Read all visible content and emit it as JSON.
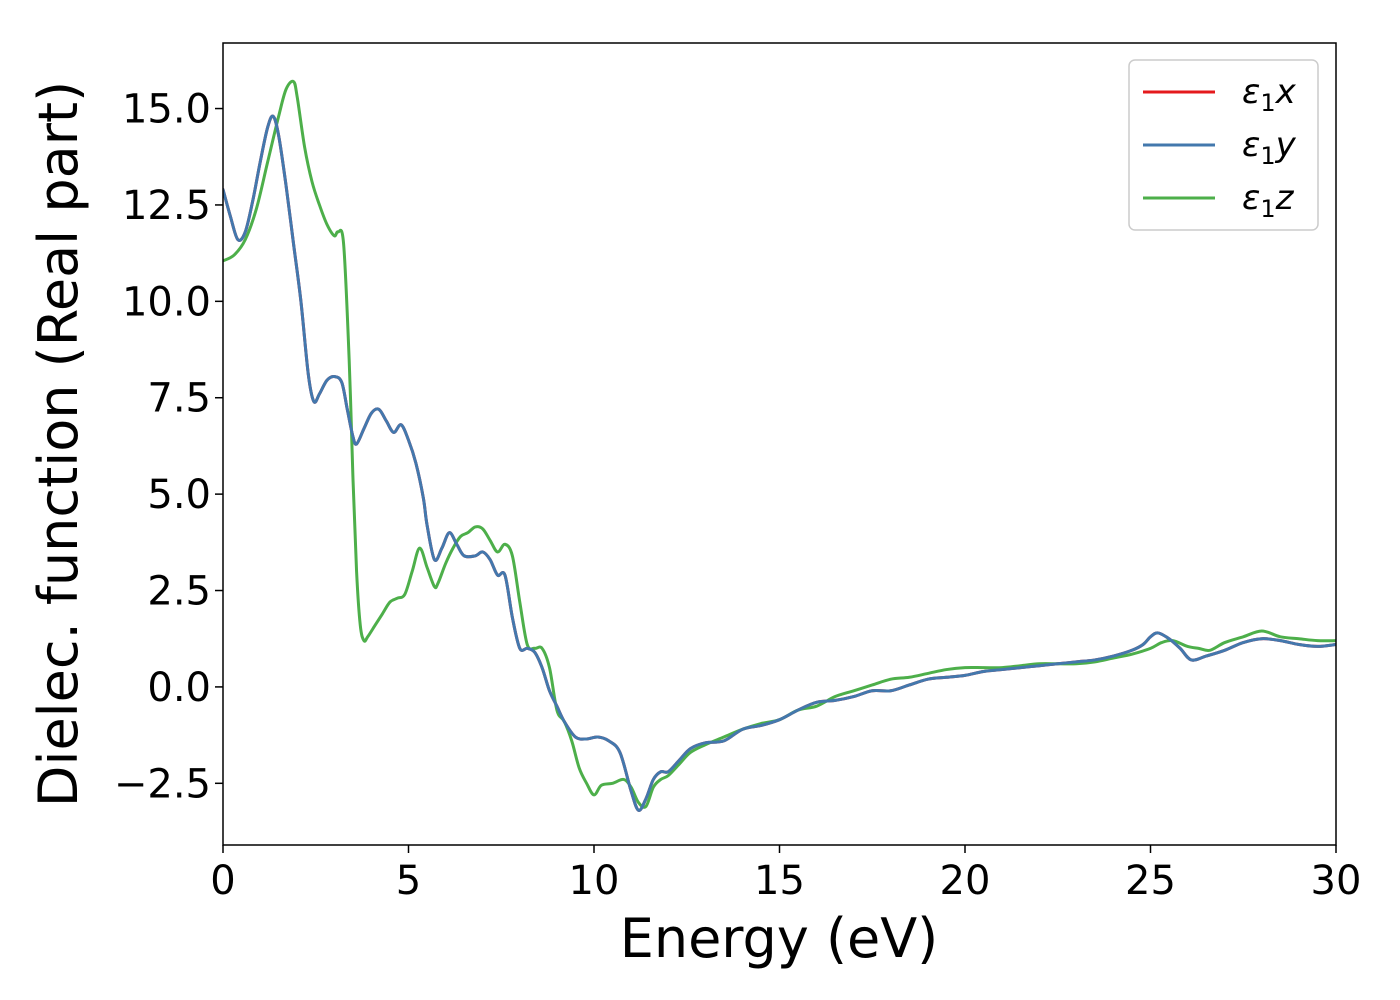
{
  "chart_data": {
    "type": "line",
    "title": "",
    "xlabel": "Energy (eV)",
    "ylabel": "Dielec. function (Real part)",
    "xlim": [
      0,
      30
    ],
    "ylim": [
      -4.1,
      16.7
    ],
    "xticks": [
      0,
      5,
      10,
      15,
      20,
      25,
      30
    ],
    "xtick_labels": [
      "0",
      "5",
      "10",
      "15",
      "20",
      "25",
      "30"
    ],
    "yticks": [
      -2.5,
      0.0,
      2.5,
      5.0,
      7.5,
      10.0,
      12.5,
      15.0
    ],
    "ytick_labels": [
      "−2.5",
      "0.0",
      "2.5",
      "5.0",
      "7.5",
      "10.0",
      "12.5",
      "15.0"
    ],
    "grid": false,
    "legend_position": "top-right",
    "series": [
      {
        "name": "ε₁x",
        "legend": {
          "symbol": "ε",
          "sub": "1",
          "axis": "x"
        },
        "color": "#e41a1c",
        "x": [
          0,
          0.2,
          0.4,
          0.6,
          0.8,
          1.0,
          1.2,
          1.35,
          1.5,
          1.7,
          1.9,
          2.1,
          2.3,
          2.45,
          2.6,
          2.8,
          3.0,
          3.2,
          3.35,
          3.5,
          3.6,
          3.8,
          4.0,
          4.2,
          4.4,
          4.6,
          4.8,
          5.0,
          5.2,
          5.4,
          5.5,
          5.7,
          5.9,
          6.1,
          6.3,
          6.5,
          6.8,
          7.0,
          7.2,
          7.4,
          7.6,
          7.8,
          8.0,
          8.2,
          8.4,
          8.6,
          8.8,
          9.0,
          9.2,
          9.5,
          9.8,
          10.1,
          10.4,
          10.7,
          11.0,
          11.2,
          11.4,
          11.6,
          11.8,
          12.0,
          12.3,
          12.6,
          13.0,
          13.5,
          14.0,
          14.5,
          15.0,
          15.5,
          16.0,
          16.5,
          17.0,
          17.5,
          18.0,
          18.5,
          19.0,
          19.5,
          20.0,
          20.5,
          21.0,
          21.5,
          22.0,
          22.5,
          23.0,
          23.5,
          24.0,
          24.5,
          24.8,
          25.0,
          25.2,
          25.5,
          25.8,
          26.1,
          26.5,
          27.0,
          27.5,
          28.0,
          28.5,
          29.0,
          29.5,
          30.0
        ],
        "y": [
          12.9,
          12.2,
          11.6,
          11.8,
          12.6,
          13.6,
          14.5,
          14.8,
          14.3,
          13.0,
          11.5,
          10.0,
          8.1,
          7.4,
          7.6,
          7.95,
          8.05,
          7.9,
          7.2,
          6.5,
          6.3,
          6.7,
          7.1,
          7.2,
          6.9,
          6.6,
          6.8,
          6.4,
          5.8,
          4.9,
          4.2,
          3.3,
          3.6,
          4.0,
          3.7,
          3.4,
          3.4,
          3.5,
          3.3,
          2.9,
          2.9,
          1.8,
          1.0,
          1.0,
          0.9,
          0.5,
          -0.1,
          -0.5,
          -0.9,
          -1.3,
          -1.35,
          -1.3,
          -1.4,
          -1.7,
          -2.7,
          -3.2,
          -2.9,
          -2.4,
          -2.2,
          -2.2,
          -1.9,
          -1.6,
          -1.45,
          -1.4,
          -1.1,
          -1.0,
          -0.85,
          -0.6,
          -0.4,
          -0.35,
          -0.25,
          -0.1,
          -0.1,
          0.05,
          0.2,
          0.25,
          0.3,
          0.4,
          0.45,
          0.5,
          0.55,
          0.6,
          0.65,
          0.7,
          0.8,
          0.95,
          1.1,
          1.3,
          1.4,
          1.25,
          1.0,
          0.7,
          0.8,
          0.95,
          1.15,
          1.25,
          1.2,
          1.1,
          1.05,
          1.1
        ]
      },
      {
        "name": "ε₁y",
        "legend": {
          "symbol": "ε",
          "sub": "1",
          "axis": "y"
        },
        "color": "#4378ad",
        "x": [
          0,
          0.2,
          0.4,
          0.6,
          0.8,
          1.0,
          1.2,
          1.35,
          1.5,
          1.7,
          1.9,
          2.1,
          2.3,
          2.45,
          2.6,
          2.8,
          3.0,
          3.2,
          3.35,
          3.5,
          3.6,
          3.8,
          4.0,
          4.2,
          4.4,
          4.6,
          4.8,
          5.0,
          5.2,
          5.4,
          5.5,
          5.7,
          5.9,
          6.1,
          6.3,
          6.5,
          6.8,
          7.0,
          7.2,
          7.4,
          7.6,
          7.8,
          8.0,
          8.2,
          8.4,
          8.6,
          8.8,
          9.0,
          9.2,
          9.5,
          9.8,
          10.1,
          10.4,
          10.7,
          11.0,
          11.2,
          11.4,
          11.6,
          11.8,
          12.0,
          12.3,
          12.6,
          13.0,
          13.5,
          14.0,
          14.5,
          15.0,
          15.5,
          16.0,
          16.5,
          17.0,
          17.5,
          18.0,
          18.5,
          19.0,
          19.5,
          20.0,
          20.5,
          21.0,
          21.5,
          22.0,
          22.5,
          23.0,
          23.5,
          24.0,
          24.5,
          24.8,
          25.0,
          25.2,
          25.5,
          25.8,
          26.1,
          26.5,
          27.0,
          27.5,
          28.0,
          28.5,
          29.0,
          29.5,
          30.0
        ],
        "y": [
          12.9,
          12.2,
          11.6,
          11.8,
          12.6,
          13.6,
          14.5,
          14.8,
          14.3,
          13.0,
          11.5,
          10.0,
          8.1,
          7.4,
          7.6,
          7.95,
          8.05,
          7.9,
          7.2,
          6.5,
          6.3,
          6.7,
          7.1,
          7.2,
          6.9,
          6.6,
          6.8,
          6.4,
          5.8,
          4.9,
          4.2,
          3.3,
          3.6,
          4.0,
          3.7,
          3.4,
          3.4,
          3.5,
          3.3,
          2.9,
          2.9,
          1.8,
          1.0,
          1.0,
          0.9,
          0.5,
          -0.1,
          -0.5,
          -0.9,
          -1.3,
          -1.35,
          -1.3,
          -1.4,
          -1.7,
          -2.7,
          -3.2,
          -2.9,
          -2.4,
          -2.2,
          -2.2,
          -1.9,
          -1.6,
          -1.45,
          -1.4,
          -1.1,
          -1.0,
          -0.85,
          -0.6,
          -0.4,
          -0.35,
          -0.25,
          -0.1,
          -0.1,
          0.05,
          0.2,
          0.25,
          0.3,
          0.4,
          0.45,
          0.5,
          0.55,
          0.6,
          0.65,
          0.7,
          0.8,
          0.95,
          1.1,
          1.3,
          1.4,
          1.25,
          1.0,
          0.7,
          0.8,
          0.95,
          1.15,
          1.25,
          1.2,
          1.1,
          1.05,
          1.1
        ]
      },
      {
        "name": "ε₁z",
        "legend": {
          "symbol": "ε",
          "sub": "1",
          "axis": "z"
        },
        "color": "#4daf4a",
        "x": [
          0,
          0.3,
          0.6,
          0.9,
          1.2,
          1.5,
          1.7,
          1.9,
          2.0,
          2.2,
          2.4,
          2.6,
          2.8,
          3.0,
          3.1,
          3.25,
          3.4,
          3.5,
          3.6,
          3.7,
          3.8,
          3.9,
          4.1,
          4.3,
          4.5,
          4.7,
          4.9,
          5.1,
          5.3,
          5.5,
          5.7,
          5.8,
          6.0,
          6.2,
          6.4,
          6.6,
          6.8,
          7.0,
          7.2,
          7.4,
          7.6,
          7.8,
          8.0,
          8.2,
          8.4,
          8.6,
          8.8,
          9.0,
          9.2,
          9.4,
          9.6,
          9.8,
          10.0,
          10.2,
          10.5,
          10.8,
          11.0,
          11.2,
          11.4,
          11.6,
          11.8,
          12.0,
          12.3,
          12.6,
          13.0,
          13.5,
          14.0,
          14.5,
          15.0,
          15.5,
          16.0,
          16.5,
          17.0,
          17.5,
          18.0,
          18.5,
          19.0,
          19.5,
          20.0,
          20.5,
          21.0,
          21.5,
          22.0,
          22.5,
          23.0,
          23.5,
          24.0,
          24.5,
          25.0,
          25.3,
          25.6,
          26.0,
          26.3,
          26.6,
          27.0,
          27.5,
          28.0,
          28.5,
          29.0,
          29.5,
          30.0
        ],
        "y": [
          11.05,
          11.2,
          11.6,
          12.4,
          13.6,
          14.8,
          15.5,
          15.7,
          15.3,
          14.0,
          13.1,
          12.5,
          12.0,
          11.7,
          11.8,
          11.5,
          8.5,
          5.5,
          3.0,
          1.6,
          1.2,
          1.3,
          1.6,
          1.9,
          2.2,
          2.3,
          2.4,
          3.0,
          3.6,
          3.1,
          2.6,
          2.7,
          3.2,
          3.6,
          3.9,
          4.0,
          4.15,
          4.1,
          3.8,
          3.5,
          3.7,
          3.4,
          2.2,
          1.1,
          1.0,
          1.0,
          0.5,
          -0.6,
          -0.9,
          -1.4,
          -2.1,
          -2.5,
          -2.8,
          -2.55,
          -2.5,
          -2.4,
          -2.6,
          -3.0,
          -3.1,
          -2.6,
          -2.4,
          -2.3,
          -2.0,
          -1.7,
          -1.5,
          -1.3,
          -1.1,
          -0.95,
          -0.85,
          -0.6,
          -0.5,
          -0.25,
          -0.1,
          0.05,
          0.2,
          0.25,
          0.35,
          0.45,
          0.5,
          0.5,
          0.5,
          0.55,
          0.6,
          0.6,
          0.6,
          0.65,
          0.75,
          0.85,
          1.0,
          1.15,
          1.2,
          1.05,
          1.0,
          0.95,
          1.15,
          1.3,
          1.45,
          1.3,
          1.25,
          1.2,
          1.2
        ]
      }
    ]
  }
}
